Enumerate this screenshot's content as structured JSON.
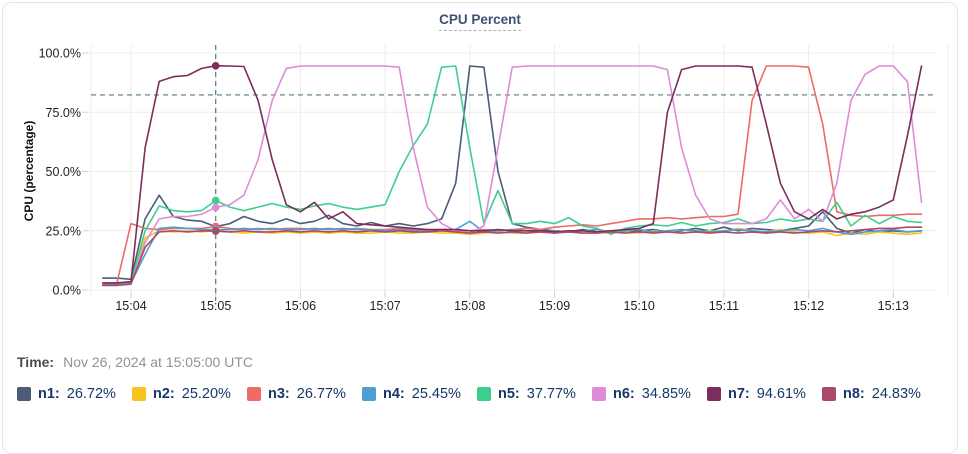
{
  "card": {
    "title": "CPU Percent"
  },
  "chart_data": {
    "type": "line",
    "title": "CPU Percent",
    "xlabel": "",
    "ylabel": "CPU (percentage)",
    "ylim": [
      0,
      100
    ],
    "grid": true,
    "y_tick_values": [
      0,
      25,
      50,
      75,
      100
    ],
    "y_tick_labels": [
      "0.0%",
      "25.0%",
      "50.0%",
      "75.0%",
      "100.0%"
    ],
    "x_tick_labels": [
      "15:04",
      "15:05",
      "15:06",
      "15:07",
      "15:08",
      "15:09",
      "15:10",
      "15:11",
      "15:12",
      "15:13"
    ],
    "start_offset_s": -20,
    "step_s": 10,
    "threshold_line_pct": 82.3,
    "crosshair": {
      "x_tick_index": 1,
      "sample_index": 8,
      "color": "#4f7a8a"
    },
    "series": [
      {
        "name": "n1",
        "color": "#4a5c78",
        "values": [
          5,
          5,
          4.5,
          30,
          40,
          31,
          29.5,
          29,
          26.72,
          28,
          31,
          29,
          28,
          30,
          28,
          29,
          31.5,
          28,
          27,
          28.5,
          27,
          28,
          27,
          28,
          30,
          45,
          94.5,
          94,
          50,
          28,
          26.5,
          25.5,
          25,
          24.5,
          25.5,
          24.5,
          25,
          24.5,
          25,
          25.5,
          24.5,
          25,
          26,
          25,
          26.5,
          25,
          26,
          25.5,
          25,
          26,
          27,
          33,
          26,
          24,
          25.5,
          24.5,
          25,
          24.5,
          25
        ]
      },
      {
        "name": "n2",
        "color": "#f6c41c",
        "values": [
          2,
          2,
          2.5,
          22,
          25,
          24.5,
          25,
          24.5,
          25.2,
          24.5,
          24,
          24.5,
          24,
          24.5,
          24,
          24.5,
          24,
          24.5,
          24,
          24,
          24.5,
          24,
          24,
          24.5,
          24,
          24,
          23.5,
          24,
          24.5,
          24,
          24,
          24.5,
          24,
          24.5,
          24,
          24.5,
          24,
          24.5,
          24,
          25,
          24.5,
          25.5,
          24.5,
          25,
          24.5,
          26,
          25,
          24.5,
          25.5,
          24.5,
          24,
          24.5,
          23,
          24,
          23.5,
          24.5,
          24,
          23.5,
          24
        ]
      },
      {
        "name": "n3",
        "color": "#ee6b66",
        "values": [
          2.5,
          3,
          28,
          26,
          25.5,
          26,
          26,
          26,
          26.77,
          26,
          25.5,
          26,
          25.5,
          26,
          26,
          25.5,
          26,
          25.5,
          26,
          25.5,
          25.5,
          26,
          25.5,
          25,
          25.5,
          25.5,
          25,
          25.5,
          25,
          25.5,
          26,
          25.5,
          26.5,
          27,
          27.5,
          27,
          28,
          29,
          30,
          30,
          30.5,
          30,
          30.5,
          31,
          31,
          32,
          80,
          94.5,
          94.5,
          94.5,
          94,
          70,
          33,
          31.5,
          31,
          31.5,
          31.5,
          32,
          32
        ]
      },
      {
        "name": "n4",
        "color": "#4d9fd3",
        "values": [
          2,
          2.5,
          3,
          15,
          26,
          26.5,
          26,
          25.5,
          25.45,
          25.5,
          26,
          25.5,
          26,
          25.5,
          25.5,
          26,
          25.5,
          26,
          25.5,
          25.5,
          25,
          25.5,
          25,
          25.5,
          25,
          25.5,
          29,
          24.5,
          25,
          25.5,
          25,
          24.5,
          25,
          24.5,
          25,
          25.5,
          24.5,
          25,
          25.5,
          24.5,
          25,
          25.5,
          25,
          24.5,
          25,
          25.5,
          25,
          24.5,
          25,
          25.5,
          25,
          26,
          24.5,
          23.5,
          24.5,
          25,
          25.5,
          24.5,
          25
        ]
      },
      {
        "name": "n5",
        "color": "#3ecf8e",
        "values": [
          2,
          2,
          3,
          25,
          35.5,
          33.5,
          33,
          33.5,
          37.77,
          35,
          33.5,
          35,
          36.5,
          35,
          34,
          35.5,
          36.5,
          35,
          34,
          35,
          36,
          50,
          61,
          70,
          94,
          94.5,
          60,
          28,
          42,
          28,
          28,
          29,
          28,
          30.5,
          27,
          26,
          23.5,
          26,
          27,
          27.5,
          27,
          28.5,
          27,
          28,
          28.5,
          30,
          28,
          28.5,
          30,
          29,
          30,
          29,
          37,
          27,
          31.5,
          28,
          31,
          29,
          28.5
        ]
      },
      {
        "name": "n6",
        "color": "#de8cd8",
        "values": [
          2,
          2,
          2.5,
          20,
          30,
          31,
          31,
          32,
          34.85,
          36,
          40,
          55,
          80,
          93.5,
          94.5,
          94.5,
          94.5,
          94.5,
          94.5,
          94.5,
          94.5,
          94,
          60,
          35,
          28,
          25,
          24,
          27,
          60,
          94,
          94.5,
          94.5,
          94.5,
          94.5,
          94.5,
          94.5,
          94.5,
          94.5,
          94.5,
          94.5,
          93,
          60,
          40,
          30,
          28,
          28,
          28,
          30,
          38,
          30,
          34,
          29,
          45,
          80,
          91,
          94.5,
          94.5,
          88,
          37
        ]
      },
      {
        "name": "n7",
        "color": "#7b2d5c",
        "values": [
          3,
          3,
          3.5,
          60,
          88,
          90,
          90.5,
          93.5,
          94.61,
          94.5,
          94.3,
          80,
          55,
          36,
          33,
          37,
          30,
          33,
          28,
          27.5,
          27,
          26.5,
          26,
          25.5,
          25.5,
          25.5,
          25,
          25,
          25.5,
          25,
          25,
          25,
          24.5,
          25,
          25,
          24.5,
          25,
          25.5,
          26,
          28,
          75,
          93,
          94.5,
          94.5,
          94.5,
          94.5,
          94,
          70,
          45,
          33,
          30,
          34,
          30,
          32,
          33,
          35,
          38,
          65,
          94.5
        ]
      },
      {
        "name": "n8",
        "color": "#ab4a68",
        "values": [
          2,
          2,
          2.5,
          18,
          24.5,
          25,
          24.5,
          25,
          24.83,
          24.5,
          25,
          24.5,
          24.5,
          25,
          24.5,
          25,
          24.5,
          25,
          24.5,
          25,
          24.5,
          25,
          24.5,
          24.5,
          25,
          24.5,
          24,
          24.5,
          24,
          24.5,
          24,
          24.5,
          24,
          24.5,
          24,
          24,
          24.5,
          24,
          24.5,
          24,
          24.5,
          24,
          24.5,
          24,
          24.5,
          24,
          24.5,
          24,
          24.5,
          24,
          24.5,
          25,
          24.5,
          25,
          25.5,
          26,
          26,
          26.5,
          26.5
        ]
      }
    ]
  },
  "footer": {
    "time_label": "Time:",
    "time_value": "Nov 26, 2024 at 15:05:00 UTC",
    "legend": [
      {
        "name": "n1",
        "value": "26.72%",
        "color": "#4a5c78"
      },
      {
        "name": "n2",
        "value": "25.20%",
        "color": "#f6c41c"
      },
      {
        "name": "n3",
        "value": "26.77%",
        "color": "#ee6b66"
      },
      {
        "name": "n4",
        "value": "25.45%",
        "color": "#4d9fd3"
      },
      {
        "name": "n5",
        "value": "37.77%",
        "color": "#3ecf8e"
      },
      {
        "name": "n6",
        "value": "34.85%",
        "color": "#de8cd8"
      },
      {
        "name": "n7",
        "value": "94.61%",
        "color": "#7b2d5c"
      },
      {
        "name": "n8",
        "value": "24.83%",
        "color": "#ab4a68"
      }
    ]
  },
  "colors": {
    "grid": "#ececec",
    "tick": "#d4d4d4",
    "crosshair": "#4f7a8a",
    "card_border": "#e3e4e6"
  }
}
